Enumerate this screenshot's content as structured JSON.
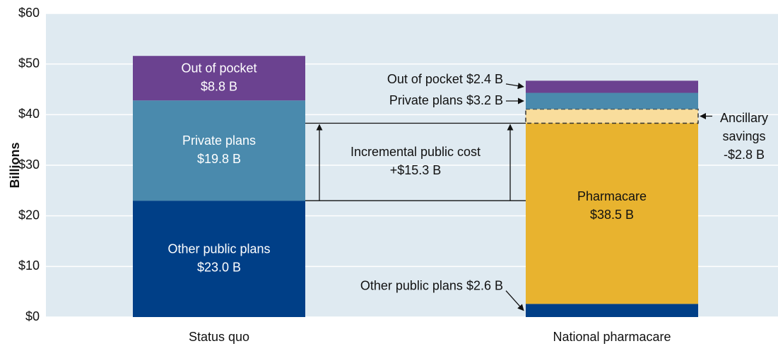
{
  "chart_data": {
    "type": "stacked-bar",
    "categories": [
      "Status quo",
      "National pharmacare"
    ],
    "ylabel": "Billions",
    "ylim": [
      0,
      60
    ],
    "yticks": [
      {
        "value": 0,
        "label": "$0"
      },
      {
        "value": 10,
        "label": "$10"
      },
      {
        "value": 20,
        "label": "$20"
      },
      {
        "value": 30,
        "label": "$30"
      },
      {
        "value": 40,
        "label": "$40"
      },
      {
        "value": 50,
        "label": "$50"
      },
      {
        "value": 60,
        "label": "$60"
      }
    ],
    "grid": true,
    "series": [
      {
        "name": "Other public plans",
        "color": "#003f87",
        "values": [
          23.0,
          2.6
        ],
        "value_labels": [
          "$23.0 B",
          "$2.6 B"
        ]
      },
      {
        "name": "Pharmacare",
        "color": "#e8b32f",
        "values": [
          null,
          38.5
        ],
        "value_labels": [
          null,
          "$38.5 B"
        ]
      },
      {
        "name": "Ancillary savings",
        "color": "#f9dd9c",
        "values": [
          null,
          -2.8
        ],
        "value_labels": [
          null,
          "-$2.8 B"
        ]
      },
      {
        "name": "Private plans",
        "color": "#4a8aad",
        "values": [
          19.8,
          3.2
        ],
        "value_labels": [
          "$19.8 B",
          "$3.2 B"
        ]
      },
      {
        "name": "Out of pocket",
        "color": "#6b4290",
        "values": [
          8.8,
          2.4
        ],
        "value_labels": [
          "$8.8 B",
          "$2.4 B"
        ]
      }
    ],
    "annotation": {
      "text": "Incremental public cost",
      "value": 15.3,
      "value_label": "+$15.3 B"
    }
  }
}
